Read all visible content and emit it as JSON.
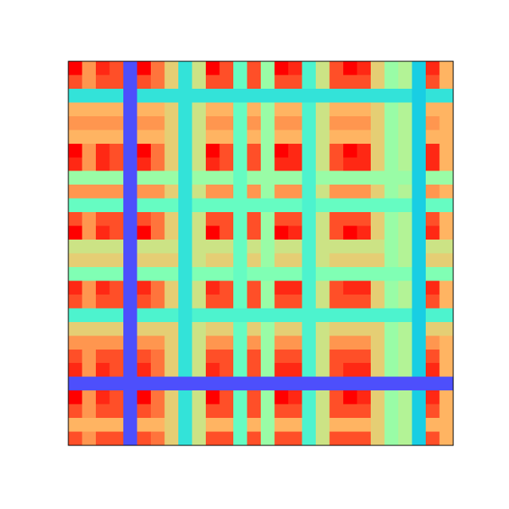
{
  "chart_data": {
    "type": "heatmap",
    "cmap": "rainbow",
    "clim": [
      0,
      1
    ],
    "frame_color": "#000000",
    "values": [
      [
        1.0,
        0.8,
        0.95,
        0.9,
        0.1,
        1.0,
        0.85,
        0.7,
        0.35,
        0.65,
        1.0,
        0.9,
        0.45,
        0.9,
        0.55,
        1.0,
        0.95,
        0.4,
        0.65,
        0.9,
        1.0,
        0.95,
        0.7,
        0.55,
        0.6,
        0.3,
        0.95,
        0.75
      ],
      [
        0.9,
        0.8,
        0.9,
        0.9,
        0.1,
        0.9,
        0.85,
        0.7,
        0.35,
        0.65,
        0.9,
        0.9,
        0.45,
        0.9,
        0.55,
        0.9,
        0.9,
        0.4,
        0.65,
        0.9,
        0.9,
        0.9,
        0.7,
        0.55,
        0.6,
        0.3,
        0.9,
        0.75
      ],
      [
        0.35,
        0.35,
        0.35,
        0.35,
        0.1,
        0.35,
        0.35,
        0.35,
        0.35,
        0.35,
        0.35,
        0.35,
        0.35,
        0.35,
        0.35,
        0.35,
        0.35,
        0.35,
        0.35,
        0.35,
        0.35,
        0.35,
        0.35,
        0.35,
        0.35,
        0.3,
        0.35,
        0.35
      ],
      [
        0.75,
        0.75,
        0.75,
        0.75,
        0.1,
        0.75,
        0.75,
        0.7,
        0.35,
        0.65,
        0.75,
        0.75,
        0.45,
        0.75,
        0.55,
        0.75,
        0.75,
        0.4,
        0.65,
        0.75,
        0.75,
        0.75,
        0.7,
        0.55,
        0.6,
        0.3,
        0.75,
        0.75
      ],
      [
        0.8,
        0.8,
        0.8,
        0.8,
        0.1,
        0.8,
        0.8,
        0.7,
        0.35,
        0.65,
        0.8,
        0.8,
        0.45,
        0.8,
        0.55,
        0.8,
        0.8,
        0.4,
        0.65,
        0.8,
        0.8,
        0.8,
        0.7,
        0.55,
        0.6,
        0.3,
        0.8,
        0.75
      ],
      [
        0.75,
        0.75,
        0.75,
        0.75,
        0.1,
        0.75,
        0.75,
        0.7,
        0.35,
        0.65,
        0.75,
        0.75,
        0.45,
        0.75,
        0.55,
        0.75,
        0.75,
        0.4,
        0.65,
        0.75,
        0.75,
        0.75,
        0.7,
        0.55,
        0.6,
        0.3,
        0.75,
        0.75
      ],
      [
        1.0,
        0.8,
        0.95,
        0.9,
        0.1,
        1.0,
        0.85,
        0.7,
        0.35,
        0.65,
        1.0,
        0.9,
        0.45,
        0.9,
        0.55,
        1.0,
        0.95,
        0.4,
        0.65,
        0.9,
        1.0,
        0.95,
        0.7,
        0.55,
        0.6,
        0.3,
        0.95,
        0.75
      ],
      [
        0.95,
        0.8,
        0.95,
        0.9,
        0.1,
        0.95,
        0.85,
        0.7,
        0.35,
        0.65,
        0.95,
        0.9,
        0.45,
        0.9,
        0.55,
        0.95,
        0.95,
        0.4,
        0.65,
        0.9,
        0.95,
        0.95,
        0.7,
        0.55,
        0.6,
        0.3,
        0.95,
        0.75
      ],
      [
        0.55,
        0.55,
        0.55,
        0.55,
        0.1,
        0.55,
        0.55,
        0.55,
        0.35,
        0.55,
        0.55,
        0.55,
        0.45,
        0.55,
        0.55,
        0.55,
        0.55,
        0.4,
        0.55,
        0.55,
        0.55,
        0.55,
        0.55,
        0.55,
        0.55,
        0.3,
        0.55,
        0.55
      ],
      [
        0.8,
        0.8,
        0.8,
        0.8,
        0.1,
        0.8,
        0.8,
        0.7,
        0.35,
        0.65,
        0.8,
        0.8,
        0.45,
        0.8,
        0.55,
        0.8,
        0.8,
        0.4,
        0.65,
        0.8,
        0.8,
        0.8,
        0.7,
        0.55,
        0.6,
        0.3,
        0.8,
        0.75
      ],
      [
        0.45,
        0.45,
        0.45,
        0.45,
        0.1,
        0.45,
        0.45,
        0.45,
        0.35,
        0.45,
        0.45,
        0.45,
        0.45,
        0.45,
        0.45,
        0.45,
        0.45,
        0.4,
        0.45,
        0.45,
        0.45,
        0.45,
        0.45,
        0.45,
        0.45,
        0.3,
        0.45,
        0.45
      ],
      [
        0.9,
        0.8,
        0.9,
        0.9,
        0.1,
        0.9,
        0.85,
        0.7,
        0.35,
        0.65,
        0.9,
        0.9,
        0.45,
        0.9,
        0.55,
        0.9,
        0.9,
        0.4,
        0.65,
        0.9,
        0.9,
        0.9,
        0.7,
        0.55,
        0.6,
        0.3,
        0.9,
        0.75
      ],
      [
        1.0,
        0.8,
        0.95,
        0.9,
        0.1,
        1.0,
        0.85,
        0.7,
        0.35,
        0.65,
        1.0,
        0.9,
        0.45,
        0.9,
        0.55,
        1.0,
        0.95,
        0.4,
        0.65,
        0.9,
        1.0,
        0.95,
        0.7,
        0.55,
        0.6,
        0.3,
        0.95,
        0.75
      ],
      [
        0.65,
        0.65,
        0.65,
        0.65,
        0.1,
        0.65,
        0.65,
        0.65,
        0.35,
        0.65,
        0.65,
        0.65,
        0.45,
        0.65,
        0.55,
        0.65,
        0.65,
        0.4,
        0.65,
        0.65,
        0.65,
        0.65,
        0.65,
        0.55,
        0.6,
        0.3,
        0.65,
        0.65
      ],
      [
        0.7,
        0.7,
        0.7,
        0.7,
        0.1,
        0.7,
        0.7,
        0.7,
        0.35,
        0.65,
        0.7,
        0.7,
        0.45,
        0.7,
        0.55,
        0.7,
        0.7,
        0.4,
        0.65,
        0.7,
        0.7,
        0.7,
        0.7,
        0.55,
        0.6,
        0.3,
        0.7,
        0.7
      ],
      [
        0.5,
        0.5,
        0.5,
        0.5,
        0.1,
        0.5,
        0.5,
        0.5,
        0.35,
        0.5,
        0.5,
        0.5,
        0.45,
        0.5,
        0.5,
        0.5,
        0.5,
        0.4,
        0.5,
        0.5,
        0.5,
        0.5,
        0.5,
        0.5,
        0.5,
        0.3,
        0.5,
        0.5
      ],
      [
        0.95,
        0.8,
        0.95,
        0.9,
        0.1,
        0.95,
        0.85,
        0.7,
        0.35,
        0.65,
        0.95,
        0.9,
        0.45,
        0.9,
        0.55,
        0.95,
        0.95,
        0.4,
        0.65,
        0.9,
        0.95,
        0.95,
        0.7,
        0.55,
        0.6,
        0.3,
        0.95,
        0.75
      ],
      [
        0.9,
        0.8,
        0.9,
        0.9,
        0.1,
        0.9,
        0.85,
        0.7,
        0.35,
        0.65,
        0.9,
        0.9,
        0.45,
        0.9,
        0.55,
        0.9,
        0.9,
        0.4,
        0.65,
        0.9,
        0.9,
        0.9,
        0.7,
        0.55,
        0.6,
        0.3,
        0.9,
        0.75
      ],
      [
        0.4,
        0.4,
        0.4,
        0.4,
        0.1,
        0.4,
        0.4,
        0.4,
        0.35,
        0.4,
        0.4,
        0.4,
        0.4,
        0.4,
        0.4,
        0.4,
        0.4,
        0.4,
        0.4,
        0.4,
        0.4,
        0.4,
        0.4,
        0.4,
        0.4,
        0.3,
        0.4,
        0.4
      ],
      [
        0.7,
        0.7,
        0.7,
        0.7,
        0.1,
        0.7,
        0.7,
        0.7,
        0.35,
        0.65,
        0.7,
        0.7,
        0.45,
        0.7,
        0.55,
        0.7,
        0.7,
        0.4,
        0.65,
        0.7,
        0.7,
        0.7,
        0.7,
        0.55,
        0.6,
        0.3,
        0.7,
        0.7
      ],
      [
        0.8,
        0.8,
        0.8,
        0.8,
        0.1,
        0.8,
        0.8,
        0.7,
        0.35,
        0.65,
        0.8,
        0.8,
        0.45,
        0.8,
        0.55,
        0.8,
        0.8,
        0.4,
        0.65,
        0.8,
        0.8,
        0.8,
        0.7,
        0.55,
        0.6,
        0.3,
        0.8,
        0.75
      ],
      [
        0.9,
        0.8,
        0.9,
        0.9,
        0.1,
        0.9,
        0.85,
        0.7,
        0.35,
        0.65,
        0.9,
        0.9,
        0.45,
        0.9,
        0.55,
        0.9,
        0.9,
        0.4,
        0.65,
        0.9,
        0.9,
        0.9,
        0.7,
        0.55,
        0.6,
        0.3,
        0.9,
        0.75
      ],
      [
        0.95,
        0.8,
        0.95,
        0.9,
        0.1,
        0.95,
        0.85,
        0.7,
        0.35,
        0.65,
        0.95,
        0.9,
        0.45,
        0.9,
        0.55,
        0.95,
        0.95,
        0.4,
        0.65,
        0.9,
        0.95,
        0.95,
        0.7,
        0.55,
        0.6,
        0.3,
        0.95,
        0.75
      ],
      [
        0.1,
        0.1,
        0.1,
        0.1,
        0.1,
        0.1,
        0.1,
        0.1,
        0.1,
        0.1,
        0.1,
        0.1,
        0.1,
        0.1,
        0.1,
        0.1,
        0.1,
        0.1,
        0.1,
        0.1,
        0.1,
        0.1,
        0.1,
        0.1,
        0.1,
        0.1,
        0.1,
        0.1
      ],
      [
        1.0,
        0.8,
        0.95,
        0.9,
        0.1,
        1.0,
        0.85,
        0.7,
        0.35,
        0.65,
        1.0,
        0.9,
        0.45,
        0.9,
        0.55,
        1.0,
        0.95,
        0.4,
        0.65,
        0.9,
        1.0,
        0.95,
        0.7,
        0.55,
        0.6,
        0.3,
        0.95,
        0.75
      ],
      [
        0.9,
        0.8,
        0.9,
        0.9,
        0.1,
        0.9,
        0.85,
        0.7,
        0.35,
        0.65,
        0.9,
        0.9,
        0.45,
        0.9,
        0.55,
        0.9,
        0.9,
        0.4,
        0.65,
        0.9,
        0.9,
        0.9,
        0.7,
        0.55,
        0.6,
        0.3,
        0.9,
        0.75
      ],
      [
        0.75,
        0.75,
        0.75,
        0.75,
        0.1,
        0.75,
        0.75,
        0.7,
        0.35,
        0.65,
        0.75,
        0.75,
        0.45,
        0.75,
        0.55,
        0.75,
        0.75,
        0.4,
        0.65,
        0.75,
        0.75,
        0.75,
        0.7,
        0.55,
        0.6,
        0.3,
        0.75,
        0.75
      ],
      [
        0.9,
        0.8,
        0.9,
        0.9,
        0.1,
        0.9,
        0.85,
        0.7,
        0.35,
        0.65,
        0.9,
        0.9,
        0.45,
        0.9,
        0.55,
        0.9,
        0.9,
        0.4,
        0.65,
        0.9,
        0.9,
        0.9,
        0.7,
        0.55,
        0.6,
        0.3,
        0.9,
        0.75
      ]
    ]
  }
}
